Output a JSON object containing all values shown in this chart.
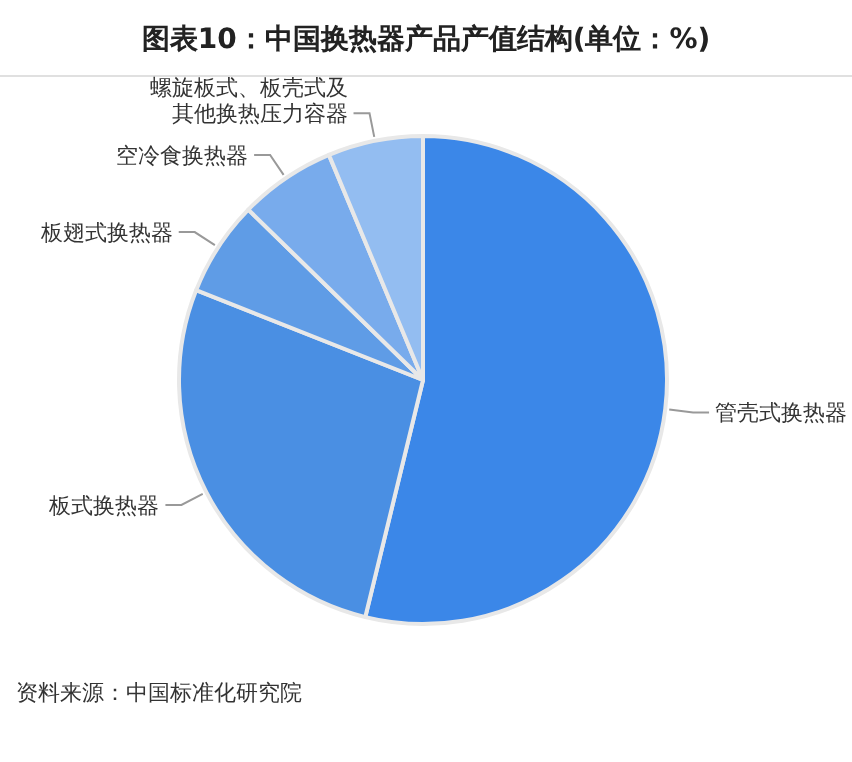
{
  "chart_data": {
    "type": "pie",
    "title": "图表10：中国换热器产品产值结构(单位：%)",
    "categories": [
      "管壳式换热器",
      "板式换热器",
      "板翅式换热器",
      "空冷食换热器",
      "螺旋板式、板壳式及其他换热压力容器"
    ],
    "values": [
      53.8,
      27.2,
      6.3,
      6.4,
      6.3
    ],
    "colors": [
      "#3b87e8",
      "#4a8fe3",
      "#5f9ce6",
      "#78abec",
      "#93bdf1"
    ],
    "annotations": [
      "资料来源：中国标准化研究院"
    ]
  }
}
